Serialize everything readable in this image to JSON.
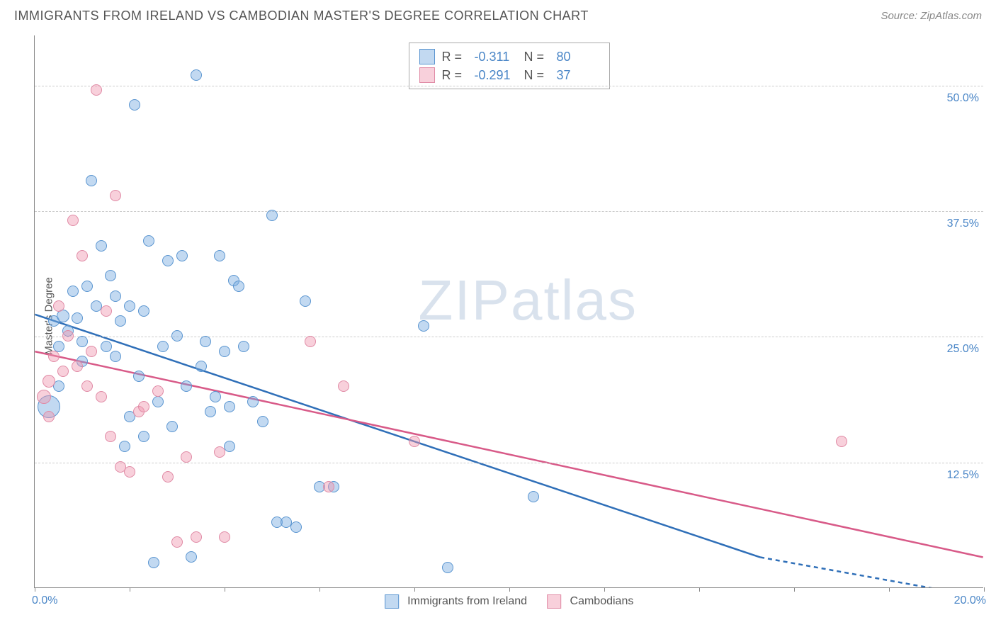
{
  "title": "IMMIGRANTS FROM IRELAND VS CAMBODIAN MASTER'S DEGREE CORRELATION CHART",
  "source_label": "Source: ZipAtlas.com",
  "watermark_text_a": "ZIP",
  "watermark_text_b": "atlas",
  "y_axis_title": "Master's Degree",
  "chart": {
    "type": "scatter",
    "xlim": [
      0,
      20
    ],
    "ylim": [
      0,
      55
    ],
    "x_tick_positions": [
      0,
      2,
      4,
      6,
      8,
      10,
      12,
      14,
      16,
      18,
      20
    ],
    "x_label_min": "0.0%",
    "x_label_max": "20.0%",
    "y_gridlines": [
      12.5,
      25.0,
      37.5,
      50.0
    ],
    "y_tick_labels": [
      "12.5%",
      "25.0%",
      "37.5%",
      "50.0%"
    ],
    "background_color": "#ffffff",
    "grid_color": "#cccccc",
    "series": [
      {
        "key": "ireland",
        "label": "Immigrants from Ireland",
        "fill": "rgba(120,170,225,0.45)",
        "stroke": "#5a95d0",
        "trend_color": "#2f6fb8",
        "R": "-0.311",
        "N": "80",
        "trend": {
          "x1": 0,
          "y1": 27.2,
          "x2": 15.3,
          "y2": 3.0,
          "dash_to_x": 20.0,
          "dash_to_y": -1.0
        },
        "points": [
          {
            "x": 0.3,
            "y": 18.0,
            "r": 16
          },
          {
            "x": 0.4,
            "y": 26.5,
            "r": 8
          },
          {
            "x": 0.5,
            "y": 24.0,
            "r": 8
          },
          {
            "x": 0.6,
            "y": 27.0,
            "r": 9
          },
          {
            "x": 0.7,
            "y": 25.5,
            "r": 8
          },
          {
            "x": 0.8,
            "y": 29.5,
            "r": 8
          },
          {
            "x": 0.9,
            "y": 26.8,
            "r": 8
          },
          {
            "x": 1.0,
            "y": 24.5,
            "r": 8
          },
          {
            "x": 1.1,
            "y": 30.0,
            "r": 8
          },
          {
            "x": 1.2,
            "y": 40.5,
            "r": 8
          },
          {
            "x": 1.3,
            "y": 28.0,
            "r": 8
          },
          {
            "x": 1.4,
            "y": 34.0,
            "r": 8
          },
          {
            "x": 1.5,
            "y": 24.0,
            "r": 8
          },
          {
            "x": 1.6,
            "y": 31.0,
            "r": 8
          },
          {
            "x": 1.7,
            "y": 29.0,
            "r": 8
          },
          {
            "x": 1.8,
            "y": 26.5,
            "r": 8
          },
          {
            "x": 1.9,
            "y": 14.0,
            "r": 8
          },
          {
            "x": 2.0,
            "y": 28.0,
            "r": 8
          },
          {
            "x": 2.1,
            "y": 48.0,
            "r": 8
          },
          {
            "x": 2.2,
            "y": 21.0,
            "r": 8
          },
          {
            "x": 2.3,
            "y": 27.5,
            "r": 8
          },
          {
            "x": 2.4,
            "y": 34.5,
            "r": 8
          },
          {
            "x": 2.5,
            "y": 2.5,
            "r": 8
          },
          {
            "x": 2.6,
            "y": 18.5,
            "r": 8
          },
          {
            "x": 2.7,
            "y": 24.0,
            "r": 8
          },
          {
            "x": 2.8,
            "y": 32.5,
            "r": 8
          },
          {
            "x": 2.9,
            "y": 16.0,
            "r": 8
          },
          {
            "x": 3.0,
            "y": 25.0,
            "r": 8
          },
          {
            "x": 3.1,
            "y": 33.0,
            "r": 8
          },
          {
            "x": 3.2,
            "y": 20.0,
            "r": 8
          },
          {
            "x": 3.3,
            "y": 3.0,
            "r": 8
          },
          {
            "x": 3.4,
            "y": 51.0,
            "r": 8
          },
          {
            "x": 3.5,
            "y": 22.0,
            "r": 8
          },
          {
            "x": 3.6,
            "y": 24.5,
            "r": 8
          },
          {
            "x": 3.7,
            "y": 17.5,
            "r": 8
          },
          {
            "x": 3.8,
            "y": 19.0,
            "r": 8
          },
          {
            "x": 3.9,
            "y": 33.0,
            "r": 8
          },
          {
            "x": 4.0,
            "y": 23.5,
            "r": 8
          },
          {
            "x": 4.1,
            "y": 18.0,
            "r": 8
          },
          {
            "x": 4.2,
            "y": 30.5,
            "r": 8
          },
          {
            "x": 4.4,
            "y": 24.0,
            "r": 8
          },
          {
            "x": 4.6,
            "y": 18.5,
            "r": 8
          },
          {
            "x": 4.8,
            "y": 16.5,
            "r": 8
          },
          {
            "x": 5.0,
            "y": 37.0,
            "r": 8
          },
          {
            "x": 5.1,
            "y": 6.5,
            "r": 8
          },
          {
            "x": 5.3,
            "y": 6.5,
            "r": 8
          },
          {
            "x": 5.5,
            "y": 6.0,
            "r": 8
          },
          {
            "x": 5.7,
            "y": 28.5,
            "r": 8
          },
          {
            "x": 6.0,
            "y": 10.0,
            "r": 8
          },
          {
            "x": 6.3,
            "y": 10.0,
            "r": 8
          },
          {
            "x": 8.2,
            "y": 26.0,
            "r": 8
          },
          {
            "x": 8.7,
            "y": 2.0,
            "r": 8
          },
          {
            "x": 10.5,
            "y": 9.0,
            "r": 8
          },
          {
            "x": 4.1,
            "y": 14.0,
            "r": 8
          },
          {
            "x": 1.0,
            "y": 22.5,
            "r": 8
          },
          {
            "x": 0.5,
            "y": 20.0,
            "r": 8
          },
          {
            "x": 2.0,
            "y": 17.0,
            "r": 8
          },
          {
            "x": 2.3,
            "y": 15.0,
            "r": 8
          },
          {
            "x": 4.3,
            "y": 30.0,
            "r": 8
          },
          {
            "x": 1.7,
            "y": 23.0,
            "r": 8
          }
        ]
      },
      {
        "key": "cambodians",
        "label": "Cambodians",
        "fill": "rgba(240,150,175,0.45)",
        "stroke": "#e08aa5",
        "trend_color": "#d85a88",
        "R": "-0.291",
        "N": "37",
        "trend": {
          "x1": 0,
          "y1": 23.5,
          "x2": 20.0,
          "y2": 3.0
        },
        "points": [
          {
            "x": 0.3,
            "y": 20.5,
            "r": 9
          },
          {
            "x": 0.4,
            "y": 23.0,
            "r": 8
          },
          {
            "x": 0.5,
            "y": 28.0,
            "r": 8
          },
          {
            "x": 0.6,
            "y": 21.5,
            "r": 8
          },
          {
            "x": 0.7,
            "y": 25.0,
            "r": 8
          },
          {
            "x": 0.8,
            "y": 36.5,
            "r": 8
          },
          {
            "x": 0.9,
            "y": 22.0,
            "r": 8
          },
          {
            "x": 1.0,
            "y": 33.0,
            "r": 8
          },
          {
            "x": 1.1,
            "y": 20.0,
            "r": 8
          },
          {
            "x": 1.3,
            "y": 49.5,
            "r": 8
          },
          {
            "x": 1.4,
            "y": 19.0,
            "r": 8
          },
          {
            "x": 1.5,
            "y": 27.5,
            "r": 8
          },
          {
            "x": 1.6,
            "y": 15.0,
            "r": 8
          },
          {
            "x": 1.7,
            "y": 39.0,
            "r": 8
          },
          {
            "x": 1.8,
            "y": 12.0,
            "r": 8
          },
          {
            "x": 2.0,
            "y": 11.5,
            "r": 8
          },
          {
            "x": 2.2,
            "y": 17.5,
            "r": 8
          },
          {
            "x": 2.3,
            "y": 18.0,
            "r": 8
          },
          {
            "x": 2.6,
            "y": 19.5,
            "r": 8
          },
          {
            "x": 2.8,
            "y": 11.0,
            "r": 8
          },
          {
            "x": 3.0,
            "y": 4.5,
            "r": 8
          },
          {
            "x": 3.2,
            "y": 13.0,
            "r": 8
          },
          {
            "x": 3.4,
            "y": 5.0,
            "r": 8
          },
          {
            "x": 3.9,
            "y": 13.5,
            "r": 8
          },
          {
            "x": 4.0,
            "y": 5.0,
            "r": 8
          },
          {
            "x": 5.8,
            "y": 24.5,
            "r": 8
          },
          {
            "x": 6.2,
            "y": 10.0,
            "r": 8
          },
          {
            "x": 6.5,
            "y": 20.0,
            "r": 8
          },
          {
            "x": 8.0,
            "y": 14.5,
            "r": 8
          },
          {
            "x": 17.0,
            "y": 14.5,
            "r": 8
          },
          {
            "x": 0.2,
            "y": 19.0,
            "r": 10
          },
          {
            "x": 0.3,
            "y": 17.0,
            "r": 8
          },
          {
            "x": 1.2,
            "y": 23.5,
            "r": 8
          }
        ]
      }
    ]
  },
  "legend": {
    "series1_label": "Immigrants from Ireland",
    "series2_label": "Cambodians"
  },
  "stats_labels": {
    "R": "R  =",
    "N": "N  ="
  }
}
